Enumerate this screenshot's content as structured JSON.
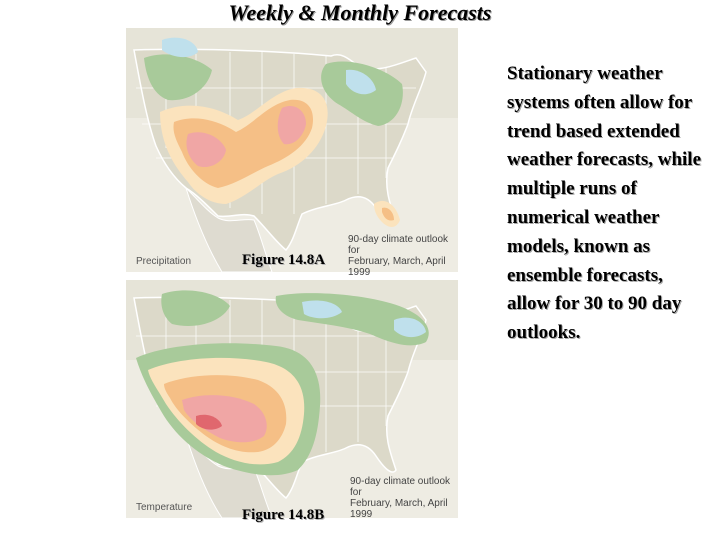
{
  "slide": {
    "title": "Weekly & Monthly Forecasts",
    "body_text": "Stationary weather systems often allow for trend based extended weather forecasts, while multiple runs of numerical weather models, known as ensemble forecasts, allow for 30 to 90 day outlooks."
  },
  "figures": [
    {
      "label": "Figure 14.8A",
      "legend_tag": "Precipitation",
      "caption_lines": [
        "90-day climate outlook for",
        "February, March, April 1999"
      ]
    },
    {
      "label": "Figure 14.8B",
      "legend_tag": "Temperature",
      "caption_lines": [
        "90-day climate outlook for",
        "February, March, April 1999"
      ]
    }
  ],
  "colors": {
    "land": "#dcd9c9",
    "border": "#ffffff",
    "wet_green": "#a8ca9a",
    "wet_blue": "#bfe0ec",
    "dry_light": "#fbe3bd",
    "dry_medium": "#f5bf86",
    "dry_strong": "#f0a6a5",
    "warm_red": "#e0676e"
  }
}
